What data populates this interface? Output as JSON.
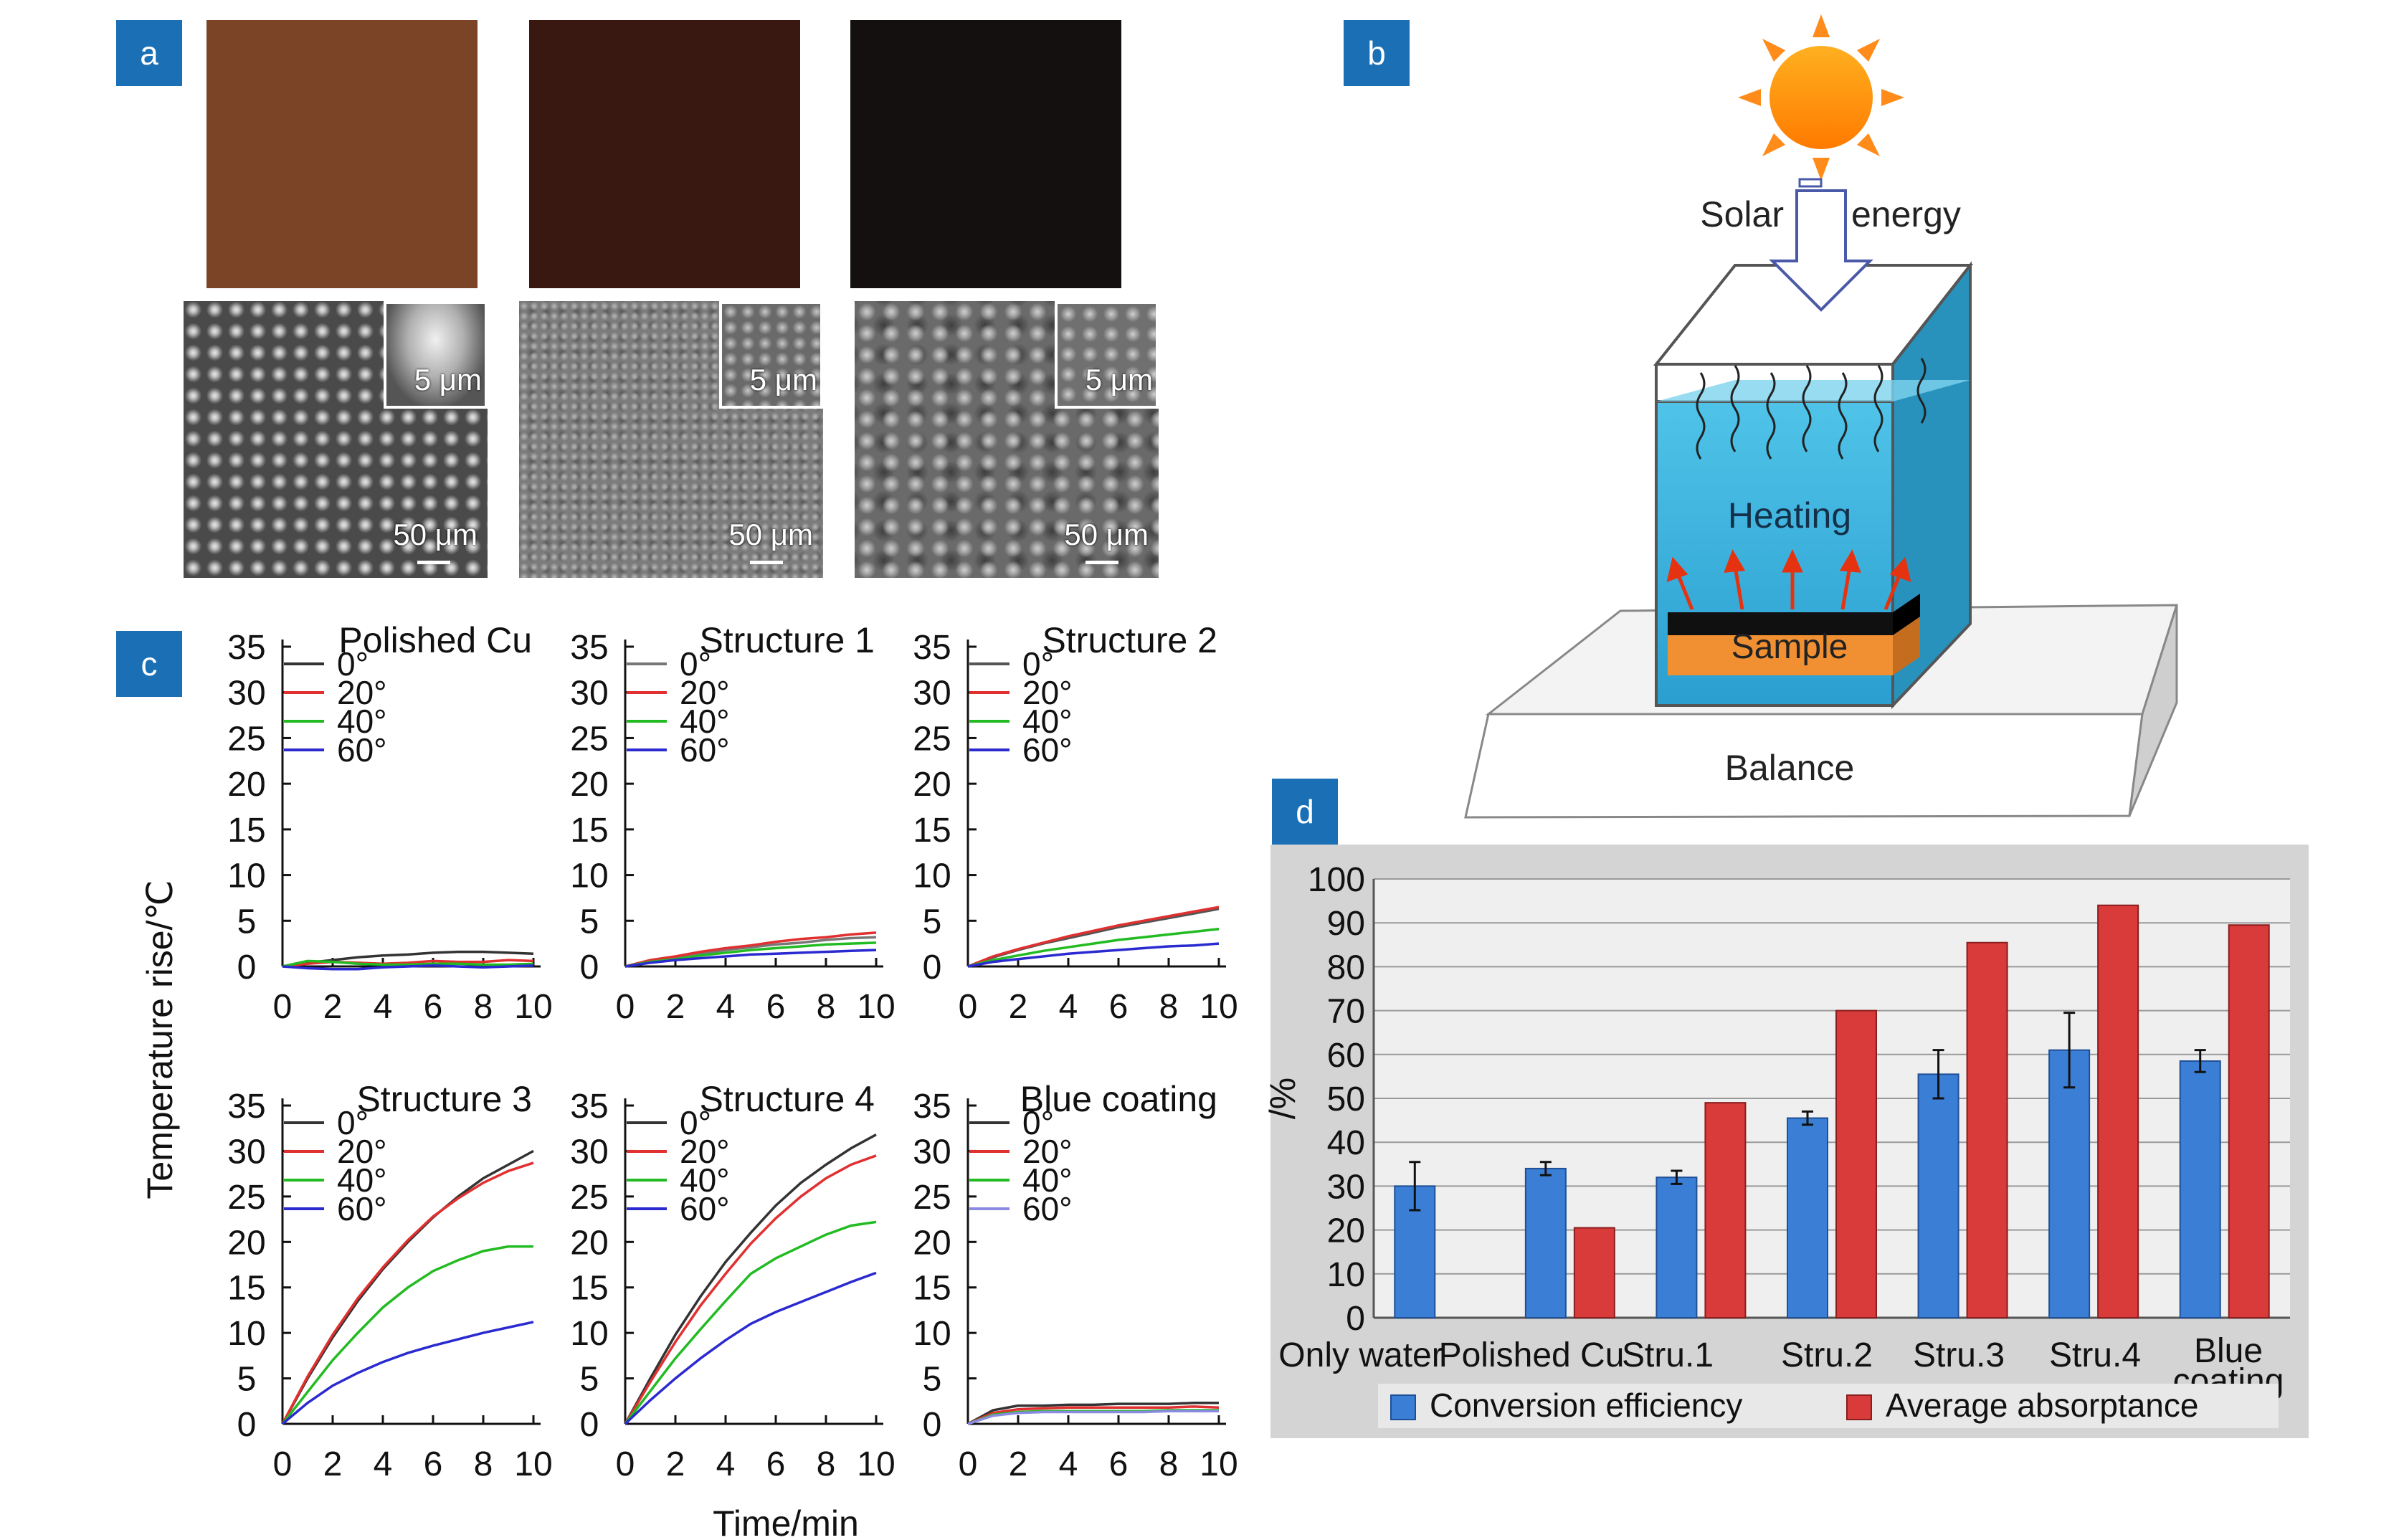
{
  "panels": {
    "a": "a",
    "b": "b",
    "c": "c",
    "d": "d"
  },
  "panel_a": {
    "scale_inset": "5 μm",
    "scale_main": "50 μm",
    "swatch_colors": [
      "#7b4427",
      "#3a1812",
      "#151010"
    ]
  },
  "panel_b": {
    "solar": "Solar",
    "energy": "energy",
    "heating": "Heating",
    "sample": "Sample",
    "balance": "Balance"
  },
  "chart_data": [
    {
      "type": "line",
      "panel": "c",
      "title": "Polished Cu",
      "xlabel": "Time/min",
      "ylabel": "Temperature rise/℃",
      "xlim": [
        0,
        10
      ],
      "ylim": [
        0,
        35
      ],
      "xticks": [
        "0",
        "2",
        "4",
        "6",
        "8",
        "10"
      ],
      "yticks": [
        "0",
        "5",
        "10",
        "15",
        "20",
        "25",
        "30",
        "35"
      ],
      "x": [
        0,
        1,
        2,
        3,
        4,
        5,
        6,
        7,
        8,
        9,
        10
      ],
      "series": [
        {
          "name": "0°",
          "color": "#333333",
          "values": [
            0,
            0.4,
            0.7,
            1.0,
            1.2,
            1.3,
            1.5,
            1.6,
            1.6,
            1.5,
            1.4
          ]
        },
        {
          "name": "20°",
          "color": "#e03030",
          "values": [
            0,
            0.3,
            0.5,
            0.4,
            0.3,
            0.4,
            0.6,
            0.5,
            0.5,
            0.7,
            0.6
          ]
        },
        {
          "name": "40°",
          "color": "#22bb22",
          "values": [
            0,
            0.6,
            0.5,
            0.3,
            0.2,
            0.2,
            0.3,
            0.3,
            0.2,
            0.2,
            0.3
          ]
        },
        {
          "name": "60°",
          "color": "#2a2ad0",
          "values": [
            0,
            -0.2,
            -0.3,
            -0.3,
            -0.1,
            0.0,
            0.1,
            0.0,
            -0.1,
            0.0,
            0.1
          ]
        }
      ]
    },
    {
      "type": "line",
      "panel": "c",
      "title": "Structure 1",
      "xlim": [
        0,
        10
      ],
      "ylim": [
        0,
        35
      ],
      "xticks": [
        "0",
        "2",
        "4",
        "6",
        "8",
        "10"
      ],
      "yticks": [
        "0",
        "5",
        "10",
        "15",
        "20",
        "25",
        "30",
        "35"
      ],
      "x": [
        0,
        1,
        2,
        3,
        4,
        5,
        6,
        7,
        8,
        9,
        10
      ],
      "series": [
        {
          "name": "0°",
          "color": "#777777",
          "values": [
            0,
            0.6,
            1.0,
            1.4,
            1.8,
            2.1,
            2.4,
            2.6,
            2.9,
            3.1,
            3.2
          ]
        },
        {
          "name": "20°",
          "color": "#e03030",
          "values": [
            0,
            0.7,
            1.1,
            1.6,
            2.0,
            2.3,
            2.7,
            3.0,
            3.2,
            3.5,
            3.7
          ]
        },
        {
          "name": "40°",
          "color": "#22bb22",
          "values": [
            0,
            0.5,
            0.8,
            1.2,
            1.5,
            1.8,
            2.0,
            2.2,
            2.4,
            2.5,
            2.6
          ]
        },
        {
          "name": "60°",
          "color": "#2a2ad0",
          "values": [
            0,
            0.4,
            0.7,
            0.9,
            1.1,
            1.3,
            1.4,
            1.5,
            1.6,
            1.7,
            1.8
          ]
        }
      ]
    },
    {
      "type": "line",
      "panel": "c",
      "title": "Structure 2",
      "xlim": [
        0,
        10
      ],
      "ylim": [
        0,
        35
      ],
      "xticks": [
        "0",
        "2",
        "4",
        "6",
        "8",
        "10"
      ],
      "yticks": [
        "0",
        "5",
        "10",
        "15",
        "20",
        "25",
        "30",
        "35"
      ],
      "x": [
        0,
        1,
        2,
        3,
        4,
        5,
        6,
        7,
        8,
        9,
        10
      ],
      "series": [
        {
          "name": "0°",
          "color": "#555555",
          "values": [
            0,
            1.0,
            1.8,
            2.5,
            3.1,
            3.7,
            4.3,
            4.8,
            5.3,
            5.8,
            6.3
          ]
        },
        {
          "name": "20°",
          "color": "#e03030",
          "values": [
            0,
            1.1,
            1.9,
            2.6,
            3.3,
            3.9,
            4.5,
            5.0,
            5.5,
            6.0,
            6.5
          ]
        },
        {
          "name": "40°",
          "color": "#22bb22",
          "values": [
            0,
            0.7,
            1.2,
            1.7,
            2.1,
            2.5,
            2.9,
            3.2,
            3.5,
            3.8,
            4.1
          ]
        },
        {
          "name": "60°",
          "color": "#2a2ad0",
          "values": [
            0,
            0.5,
            0.8,
            1.1,
            1.4,
            1.6,
            1.8,
            2.0,
            2.2,
            2.3,
            2.5
          ]
        }
      ]
    },
    {
      "type": "line",
      "panel": "c",
      "title": "Structure 3",
      "xlim": [
        0,
        10
      ],
      "ylim": [
        0,
        35
      ],
      "xticks": [
        "0",
        "2",
        "4",
        "6",
        "8",
        "10"
      ],
      "yticks": [
        "0",
        "5",
        "10",
        "15",
        "20",
        "25",
        "30",
        "35"
      ],
      "x": [
        0,
        1,
        2,
        3,
        4,
        5,
        6,
        7,
        8,
        9,
        10
      ],
      "series": [
        {
          "name": "0°",
          "color": "#333333",
          "values": [
            0,
            5.0,
            9.5,
            13.5,
            17.0,
            20.0,
            22.7,
            25.0,
            27.0,
            28.5,
            30.0
          ]
        },
        {
          "name": "20°",
          "color": "#e03030",
          "values": [
            0,
            5.2,
            9.8,
            13.8,
            17.2,
            20.2,
            22.8,
            24.8,
            26.5,
            27.8,
            28.7
          ]
        },
        {
          "name": "40°",
          "color": "#22bb22",
          "values": [
            0,
            3.5,
            7.0,
            10.0,
            12.8,
            15.0,
            16.8,
            18.0,
            19.0,
            19.5,
            19.5
          ]
        },
        {
          "name": "60°",
          "color": "#2a2ad0",
          "values": [
            0,
            2.3,
            4.2,
            5.6,
            6.8,
            7.8,
            8.6,
            9.3,
            10.0,
            10.6,
            11.2
          ]
        }
      ]
    },
    {
      "type": "line",
      "panel": "c",
      "title": "Structure 4",
      "xlim": [
        0,
        10
      ],
      "ylim": [
        0,
        35
      ],
      "xticks": [
        "0",
        "2",
        "4",
        "6",
        "8",
        "10"
      ],
      "yticks": [
        "0",
        "5",
        "10",
        "15",
        "20",
        "25",
        "30",
        "35"
      ],
      "x": [
        0,
        1,
        2,
        3,
        4,
        5,
        6,
        7,
        8,
        9,
        10
      ],
      "series": [
        {
          "name": "0°",
          "color": "#333333",
          "values": [
            0,
            5.0,
            9.8,
            14.0,
            17.8,
            21.0,
            24.0,
            26.5,
            28.5,
            30.3,
            31.8
          ]
        },
        {
          "name": "20°",
          "color": "#e03030",
          "values": [
            0,
            4.6,
            9.0,
            13.0,
            16.5,
            19.8,
            22.6,
            25.0,
            27.0,
            28.5,
            29.5
          ]
        },
        {
          "name": "40°",
          "color": "#22bb22",
          "values": [
            0,
            3.6,
            7.2,
            10.4,
            13.5,
            16.5,
            18.2,
            19.5,
            20.8,
            21.8,
            22.2
          ]
        },
        {
          "name": "60°",
          "color": "#2a2ad0",
          "values": [
            0,
            2.6,
            5.0,
            7.2,
            9.2,
            11.0,
            12.3,
            13.4,
            14.5,
            15.6,
            16.6
          ]
        }
      ]
    },
    {
      "type": "line",
      "panel": "c",
      "title": "Blue coating",
      "xlim": [
        0,
        10
      ],
      "ylim": [
        0,
        35
      ],
      "xticks": [
        "0",
        "2",
        "4",
        "6",
        "8",
        "10"
      ],
      "yticks": [
        "0",
        "5",
        "10",
        "15",
        "20",
        "25",
        "30",
        "35"
      ],
      "x": [
        0,
        1,
        2,
        3,
        4,
        5,
        6,
        7,
        8,
        9,
        10
      ],
      "series": [
        {
          "name": "0°",
          "color": "#333333",
          "values": [
            0,
            1.5,
            2.0,
            2.0,
            2.1,
            2.1,
            2.2,
            2.2,
            2.2,
            2.3,
            2.3
          ]
        },
        {
          "name": "20°",
          "color": "#e03030",
          "values": [
            0,
            1.2,
            1.6,
            1.7,
            1.8,
            1.8,
            1.8,
            1.8,
            1.8,
            1.9,
            1.8
          ]
        },
        {
          "name": "40°",
          "color": "#22bb22",
          "values": [
            0,
            1.0,
            1.3,
            1.4,
            1.4,
            1.4,
            1.4,
            1.4,
            1.5,
            1.5,
            1.5
          ]
        },
        {
          "name": "60°",
          "color": "#8a8ae0",
          "values": [
            0,
            0.9,
            1.2,
            1.3,
            1.3,
            1.3,
            1.3,
            1.3,
            1.4,
            1.4,
            1.4
          ]
        }
      ]
    },
    {
      "type": "bar",
      "panel": "d",
      "ylabel": "/%",
      "ylim": [
        0,
        100
      ],
      "yticks": [
        "0",
        "10",
        "20",
        "30",
        "40",
        "50",
        "60",
        "70",
        "80",
        "90",
        "100"
      ],
      "categories": [
        "Only water",
        "Polished Cu",
        "Stru.1",
        "Stru.2",
        "Stru.3",
        "Stru.4",
        "Blue coating"
      ],
      "category_labels": [
        {
          "text": "Only water"
        },
        {
          "text": "Polished Cu"
        },
        {
          "text": "Stru.1"
        },
        {
          "text": "Stru.2"
        },
        {
          "text": "Stru.3"
        },
        {
          "text": "Stru.4"
        },
        {
          "text": "Blue coating"
        }
      ],
      "series": [
        {
          "name": "Conversion efficiency",
          "color": "#3a7fd5",
          "values": [
            30,
            34,
            32,
            45.5,
            55.5,
            61,
            58.5
          ],
          "errors": [
            5.5,
            1.5,
            1.5,
            1.5,
            5.5,
            8.5,
            2.5
          ]
        },
        {
          "name": "Average absorptance",
          "color": "#d93a3a",
          "values": [
            null,
            20.5,
            49,
            70,
            85.5,
            94,
            89.5
          ]
        }
      ]
    }
  ]
}
